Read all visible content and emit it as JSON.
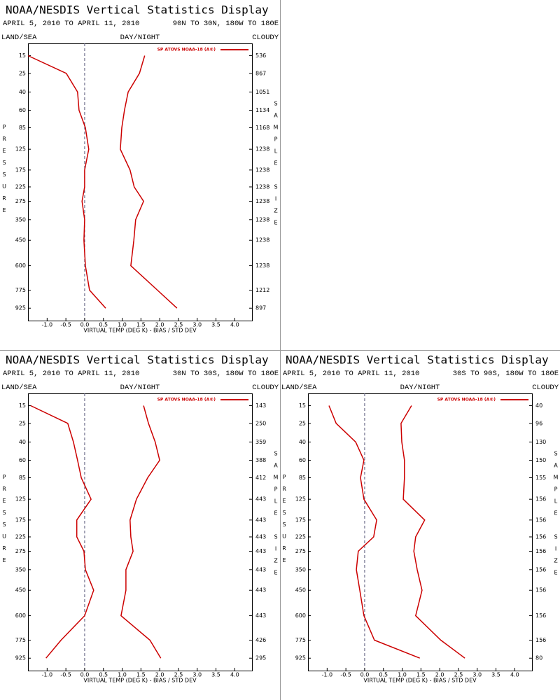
{
  "chart_data": [
    {
      "type": "line",
      "title": "NOAA/NESDIS Vertical Statistics Display",
      "subtitle": "APRIL 5, 2010 TO APRIL 11, 2010",
      "region": "90N TO 30N, 180W TO 180E",
      "land_sea": "LAND/SEA",
      "day_night": "DAY/NIGHT",
      "cloudy": "CLOUDY",
      "xlabel": "VIRTUAL TEMP (DEG K) - BIAS / STD DEV",
      "ylabel": "PRESSURE",
      "y2label": "SAMPLE SIZE",
      "xlim": [
        -1.51,
        4.46
      ],
      "xticks": [
        {
          "value": -1,
          "label": "-1.0"
        },
        -0.5,
        {
          "value": 0,
          "label": "0.0"
        },
        0.5,
        {
          "value": 1,
          "label": "1.0"
        },
        1.5,
        {
          "value": 2,
          "label": "2.0"
        },
        2.5,
        {
          "value": 3,
          "label": "3.0"
        },
        3.5,
        {
          "value": 4,
          "label": "4.0"
        }
      ],
      "ylim": [
        10,
        1040
      ],
      "yticks": [
        15,
        25,
        40,
        60,
        85,
        125,
        175,
        225,
        275,
        350,
        450,
        600,
        775,
        925
      ],
      "sample_size": [
        "536",
        "867",
        "1051",
        "1134",
        "1168",
        "1238",
        "1238",
        "1238",
        "1238",
        "1238",
        "1238",
        "1238",
        "1212",
        "897"
      ],
      "series": [
        {
          "name": "SP ATOVS NOAA-18 (A®)",
          "color": "#cc0000",
          "bias": [
            -1.51,
            -0.49,
            -0.19,
            -0.15,
            0.02,
            0.11,
            0.0,
            0.0,
            -0.07,
            0.0,
            -0.02,
            0.02,
            0.13,
            0.56
          ],
          "std_dev": [
            1.6,
            1.46,
            1.16,
            1.06,
            0.99,
            0.95,
            1.21,
            1.32,
            1.57,
            1.36,
            1.31,
            1.23,
            1.94,
            2.46
          ]
        }
      ]
    },
    {
      "type": "line",
      "title": "NOAA/NESDIS Vertical Statistics Display",
      "subtitle": "APRIL 5, 2010 TO APRIL 11, 2010",
      "region": "30N TO 30S, 180W TO 180E",
      "land_sea": "LAND/SEA",
      "day_night": "DAY/NIGHT",
      "cloudy": "CLOUDY",
      "xlabel": "VIRTUAL TEMP (DEG K) - BIAS / STD DEV",
      "ylabel": "PRESSURE",
      "y2label": "SAMPLE SIZE",
      "xlim": [
        -1.51,
        4.46
      ],
      "xticks": [
        {
          "value": -1,
          "label": "-1.0"
        },
        -0.5,
        {
          "value": 0,
          "label": "0.0"
        },
        0.5,
        {
          "value": 1,
          "label": "1.0"
        },
        1.5,
        {
          "value": 2,
          "label": "2.0"
        },
        2.5,
        {
          "value": 3,
          "label": "3.0"
        },
        3.5,
        {
          "value": 4,
          "label": "4.0"
        }
      ],
      "ylim": [
        10,
        1040
      ],
      "yticks": [
        15,
        25,
        40,
        60,
        85,
        125,
        175,
        225,
        275,
        350,
        450,
        600,
        775,
        925
      ],
      "sample_size": [
        "143",
        "250",
        "359",
        "388",
        "412",
        "443",
        "443",
        "443",
        "443",
        "443",
        "443",
        "443",
        "426",
        "295"
      ],
      "series": [
        {
          "name": "SP ATOVS NOAA-18 (A®)",
          "color": "#cc0000",
          "bias": [
            -1.44,
            -0.45,
            -0.3,
            -0.19,
            -0.09,
            0.17,
            -0.21,
            -0.21,
            -0.02,
            0.02,
            0.24,
            0.0,
            -0.63,
            -1.03
          ],
          "std_dev": [
            1.57,
            1.7,
            1.88,
            2.0,
            1.68,
            1.38,
            1.21,
            1.23,
            1.29,
            1.1,
            1.1,
            0.97,
            1.74,
            2.03
          ]
        }
      ]
    },
    {
      "type": "line",
      "title": "NOAA/NESDIS Vertical Statistics Display",
      "subtitle": "APRIL 5, 2010 TO APRIL 11, 2010",
      "region": "30S TO 90S, 180W TO 180E",
      "land_sea": "LAND/SEA",
      "day_night": "DAY/NIGHT",
      "cloudy": "CLOUDY",
      "xlabel": "VIRTUAL TEMP (DEG K) - BIAS / STD DEV",
      "ylabel": "PRESSURE",
      "y2label": "SAMPLE SIZE",
      "xlim": [
        -1.51,
        4.46
      ],
      "xticks": [
        {
          "value": -1,
          "label": "-1.0"
        },
        -0.5,
        {
          "value": 0,
          "label": "0.0"
        },
        0.5,
        {
          "value": 1,
          "label": "1.0"
        },
        1.5,
        {
          "value": 2,
          "label": "2.0"
        },
        2.5,
        {
          "value": 3,
          "label": "3.0"
        },
        3.5,
        {
          "value": 4,
          "label": "4.0"
        }
      ],
      "ylim": [
        10,
        1040
      ],
      "yticks": [
        15,
        25,
        40,
        60,
        85,
        125,
        175,
        225,
        275,
        350,
        450,
        600,
        775,
        925
      ],
      "sample_size": [
        "40",
        "96",
        "130",
        "150",
        "155",
        "156",
        "156",
        "156",
        "156",
        "156",
        "156",
        "156",
        "156",
        "80"
      ],
      "series": [
        {
          "name": "SP ATOVS NOAA-18 (A®)",
          "color": "#cc0000",
          "bias": [
            -0.95,
            -0.76,
            -0.24,
            -0.02,
            -0.11,
            -0.02,
            0.32,
            0.24,
            -0.17,
            -0.22,
            -0.13,
            -0.02,
            0.26,
            1.47
          ],
          "std_dev": [
            1.25,
            0.97,
            0.99,
            1.06,
            1.06,
            1.03,
            1.6,
            1.36,
            1.31,
            1.4,
            1.53,
            1.36,
            2.03,
            2.67
          ]
        }
      ]
    }
  ]
}
